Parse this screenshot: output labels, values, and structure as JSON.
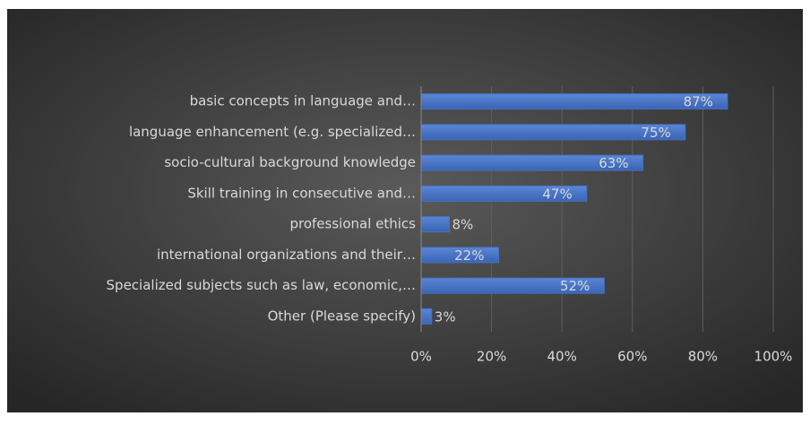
{
  "chart_data": {
    "type": "bar",
    "orientation": "horizontal",
    "categories": [
      "basic concepts in language and…",
      "language enhancement (e.g. specialized…",
      "socio-cultural background knowledge",
      "Skill training in consecutive and…",
      "professional ethics",
      "international organizations and their…",
      "Specialized subjects such as law, economic,…",
      "Other (Please specify)"
    ],
    "values": [
      87,
      75,
      63,
      47,
      8,
      22,
      52,
      3
    ],
    "value_labels": [
      "87%",
      "75%",
      "63%",
      "47%",
      "8%",
      "22%",
      "52%",
      "3%"
    ],
    "color": "#4472c4",
    "xlim": [
      0,
      100
    ],
    "xticks": [
      {
        "value": 0,
        "label": "0%"
      },
      {
        "value": 20,
        "label": "20%"
      },
      {
        "value": 40,
        "label": "40%"
      },
      {
        "value": 60,
        "label": "60%"
      },
      {
        "value": 80,
        "label": "80%"
      },
      {
        "value": 100,
        "label": "100%"
      }
    ],
    "grid": true
  }
}
